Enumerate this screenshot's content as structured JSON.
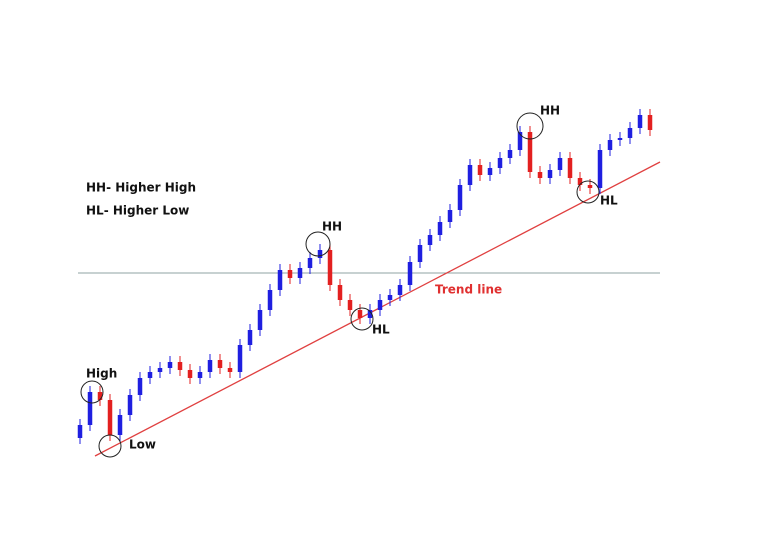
{
  "chart_data": {
    "type": "candlestick",
    "up_color": "#1f1fe0",
    "down_color": "#e32020",
    "ylim": [
      0,
      360
    ],
    "open": [
      22,
      35,
      68,
      60,
      25,
      45,
      65,
      82,
      88,
      92,
      98,
      90,
      82,
      88,
      100,
      92,
      88,
      115,
      130,
      150,
      170,
      190,
      182,
      192,
      202,
      210,
      175,
      160,
      150,
      142,
      150,
      160,
      165,
      175,
      198,
      215,
      225,
      238,
      250,
      275,
      295,
      285,
      292,
      302,
      310,
      328,
      288,
      282,
      290,
      302,
      282,
      275,
      272,
      310,
      320,
      322,
      332,
      345
    ],
    "high": [
      41,
      74,
      74,
      66,
      51,
      71,
      88,
      94,
      98,
      104,
      104,
      96,
      94,
      106,
      106,
      98,
      121,
      136,
      156,
      176,
      196,
      196,
      198,
      208,
      216,
      216,
      181,
      166,
      156,
      156,
      166,
      171,
      181,
      204,
      221,
      231,
      244,
      256,
      281,
      301,
      301,
      298,
      308,
      316,
      334,
      334,
      294,
      296,
      308,
      308,
      288,
      281,
      316,
      326,
      328,
      338,
      351,
      351
    ],
    "low": [
      16,
      29,
      54,
      19,
      19,
      39,
      59,
      76,
      82,
      86,
      84,
      76,
      76,
      82,
      86,
      82,
      82,
      109,
      124,
      144,
      164,
      176,
      176,
      186,
      196,
      169,
      154,
      144,
      136,
      136,
      144,
      154,
      159,
      169,
      192,
      209,
      219,
      232,
      244,
      269,
      279,
      279,
      286,
      296,
      304,
      282,
      276,
      276,
      284,
      276,
      269,
      266,
      266,
      304,
      314,
      316,
      326,
      324
    ],
    "close": [
      35,
      68,
      60,
      25,
      45,
      65,
      82,
      88,
      92,
      98,
      90,
      82,
      88,
      100,
      92,
      88,
      115,
      130,
      150,
      170,
      190,
      182,
      192,
      202,
      210,
      175,
      160,
      150,
      142,
      150,
      160,
      165,
      175,
      198,
      215,
      225,
      238,
      250,
      275,
      295,
      285,
      292,
      302,
      310,
      328,
      288,
      282,
      290,
      302,
      282,
      275,
      272,
      310,
      320,
      322,
      332,
      345,
      330
    ],
    "annotations": [
      "HH- Higher High",
      "HL- Higher Low",
      "High",
      "Low",
      "HH",
      "HL",
      "Trend line",
      "HH",
      "HL"
    ]
  }
}
